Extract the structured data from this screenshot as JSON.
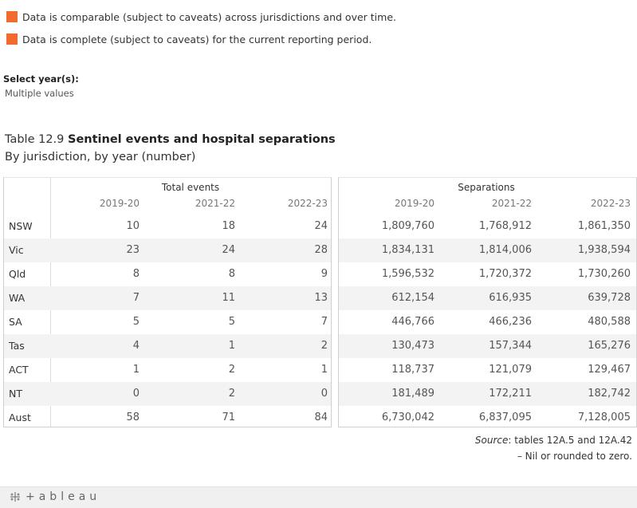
{
  "legend": [
    {
      "text": "Data is comparable (subject to caveats) across jurisdictions and over time.",
      "color": "#f26b2d"
    },
    {
      "text": "Data is complete (subject to caveats) for the current reporting period.",
      "color": "#f26b2d"
    }
  ],
  "filter": {
    "label": "Select year(s):",
    "value": "Multiple values"
  },
  "title": {
    "prefix": "Table 12.9 ",
    "bold": "Sentinel events and hospital separations",
    "subtitle": "By jurisdiction, by year (number)"
  },
  "table": {
    "groups": {
      "left": "Total events",
      "right": "Separations"
    },
    "years": [
      "2019-20",
      "2021-22",
      "2022-23"
    ],
    "rows": [
      {
        "label": "NSW",
        "events": [
          "10",
          "18",
          "24"
        ],
        "separations": [
          "1,809,760",
          "1,768,912",
          "1,861,350"
        ]
      },
      {
        "label": "Vic",
        "events": [
          "23",
          "24",
          "28"
        ],
        "separations": [
          "1,834,131",
          "1,814,006",
          "1,938,594"
        ]
      },
      {
        "label": "Qld",
        "events": [
          "8",
          "8",
          "9"
        ],
        "separations": [
          "1,596,532",
          "1,720,372",
          "1,730,260"
        ]
      },
      {
        "label": "WA",
        "events": [
          "7",
          "11",
          "13"
        ],
        "separations": [
          "612,154",
          "616,935",
          "639,728"
        ]
      },
      {
        "label": "SA",
        "events": [
          "5",
          "5",
          "7"
        ],
        "separations": [
          "446,766",
          "466,236",
          "480,588"
        ]
      },
      {
        "label": "Tas",
        "events": [
          "4",
          "1",
          "2"
        ],
        "separations": [
          "130,473",
          "157,344",
          "165,276"
        ]
      },
      {
        "label": "ACT",
        "events": [
          "1",
          "2",
          "1"
        ],
        "separations": [
          "118,737",
          "121,079",
          "129,467"
        ]
      },
      {
        "label": "NT",
        "events": [
          "0",
          "2",
          "0"
        ],
        "separations": [
          "181,489",
          "172,211",
          "182,742"
        ]
      },
      {
        "label": "Aust",
        "events": [
          "58",
          "71",
          "84"
        ],
        "separations": [
          "6,730,042",
          "6,837,095",
          "7,128,005"
        ]
      }
    ]
  },
  "footnotes": {
    "source_label": "Source",
    "source_text": ": tables 12A.5 and 12A.42",
    "nil": "– Nil or rounded to zero."
  },
  "footer": {
    "logo": "+ableau",
    "logo_icon": "tableau-logo-icon"
  }
}
